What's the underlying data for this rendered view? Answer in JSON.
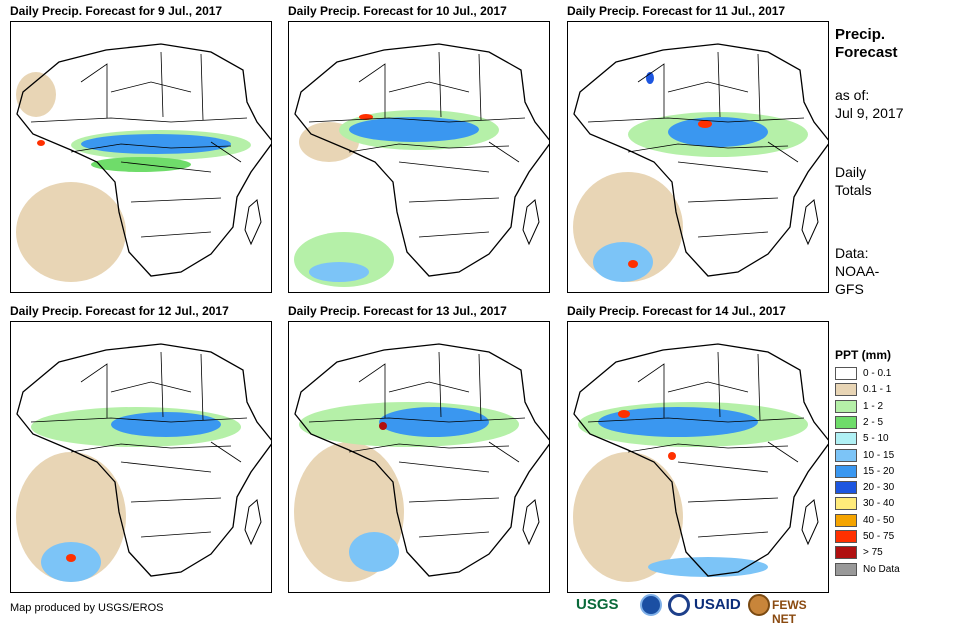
{
  "panels": [
    {
      "title": "Daily Precip. Forecast for 9 Jul., 2017"
    },
    {
      "title": "Daily Precip. Forecast for 10 Jul., 2017"
    },
    {
      "title": "Daily Precip. Forecast for 11 Jul., 2017"
    },
    {
      "title": "Daily Precip. Forecast for 12 Jul., 2017"
    },
    {
      "title": "Daily Precip. Forecast for 13 Jul., 2017"
    },
    {
      "title": "Daily Precip. Forecast for 14 Jul., 2017"
    }
  ],
  "side": {
    "title_line1": "Precip.",
    "title_line2": "Forecast",
    "asof_label": "as of:",
    "asof_date": "Jul 9, 2017",
    "totals_line1": "Daily",
    "totals_line2": "Totals",
    "data_label": "Data:",
    "data_line1": "NOAA-",
    "data_line2": "GFS"
  },
  "legend": {
    "title": "PPT (mm)",
    "items": [
      {
        "label": "0 - 0.1",
        "color": "#ffffff"
      },
      {
        "label": "0.1 - 1",
        "color": "#e8d5b5"
      },
      {
        "label": "1 - 2",
        "color": "#b5f0a8"
      },
      {
        "label": "2 - 5",
        "color": "#6fdc6a"
      },
      {
        "label": "5 - 10",
        "color": "#b0f0f4"
      },
      {
        "label": "10 - 15",
        "color": "#7cc4f7"
      },
      {
        "label": "15 - 20",
        "color": "#3a97f0"
      },
      {
        "label": "20 - 30",
        "color": "#1d56e0"
      },
      {
        "label": "30 - 40",
        "color": "#ffeb7a"
      },
      {
        "label": "40 - 50",
        "color": "#f5a400"
      },
      {
        "label": "50 - 75",
        "color": "#ff3000"
      },
      {
        "label": "> 75",
        "color": "#b01010"
      },
      {
        "label": "No Data",
        "color": "#999999"
      }
    ]
  },
  "footer": {
    "credit": "Map produced by USGS/EROS"
  },
  "logos": {
    "usgs": "USGS",
    "usaid": "USAID",
    "fews": "FEWS NET"
  }
}
